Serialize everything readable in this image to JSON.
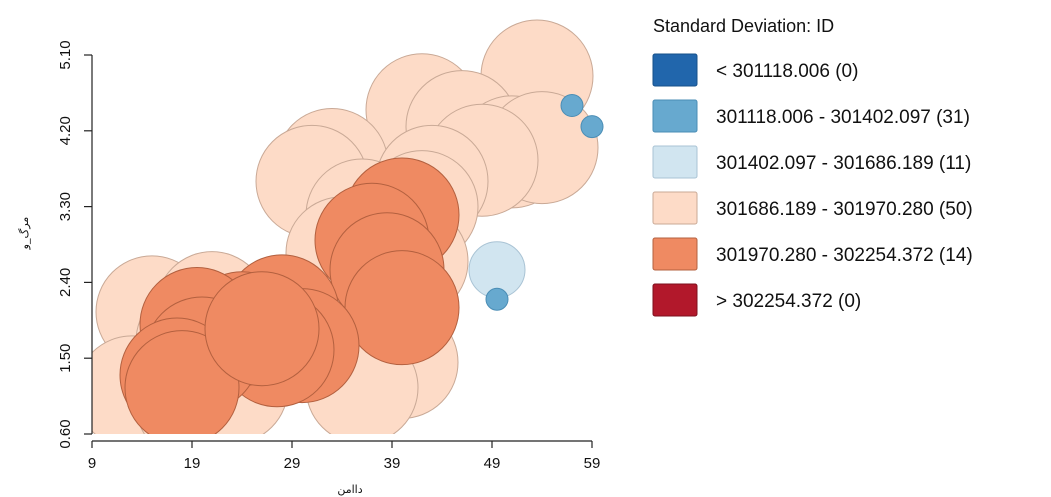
{
  "chart_data": {
    "type": "scatter",
    "subtype": "proportional-symbol map of graduated-color circles",
    "xlabel": "داامن",
    "ylabel": "مرگ_و",
    "xticks": [
      9,
      19,
      29,
      39,
      49,
      59
    ],
    "yticks": [
      "0.60",
      "1.50",
      "2.40",
      "3.30",
      "4.20",
      "5.10"
    ],
    "xlim": [
      9,
      62
    ],
    "ylim": [
      0.6,
      5.3
    ],
    "grid": false,
    "legend_position": "right",
    "legend": {
      "title": "Standard Deviation: ID",
      "classes": [
        {
          "label": "< 301118.006 (0)",
          "color": "#2166ac",
          "stroke": "#16508a"
        },
        {
          "label": "301118.006 - 301402.097 (31)",
          "color": "#67a9cf",
          "stroke": "#4a8db5"
        },
        {
          "label": "301402.097 - 301686.189 (11)",
          "color": "#d1e5f0",
          "stroke": "#a9c3d4"
        },
        {
          "label": "301686.189 - 301970.280 (50)",
          "color": "#fddbc7",
          "stroke": "#c9a996"
        },
        {
          "label": "301970.280 - 302254.372 (14)",
          "color": "#ef8a62",
          "stroke": "#b3603f"
        },
        {
          "label": "> 302254.372 (0)",
          "color": "#b2182b",
          "stroke": "#7d0f1d"
        }
      ]
    },
    "points": [
      {
        "x": 53.5,
        "y": 4.85,
        "cls": 3
      },
      {
        "x": 42,
        "y": 4.45,
        "cls": 3
      },
      {
        "x": 46,
        "y": 4.25,
        "cls": 3
      },
      {
        "x": 51,
        "y": 3.95,
        "cls": 3
      },
      {
        "x": 54,
        "y": 4.0,
        "cls": 3
      },
      {
        "x": 48,
        "y": 3.85,
        "cls": 3
      },
      {
        "x": 33,
        "y": 3.8,
        "cls": 3
      },
      {
        "x": 31,
        "y": 3.6,
        "cls": 3
      },
      {
        "x": 43,
        "y": 3.6,
        "cls": 3
      },
      {
        "x": 42,
        "y": 3.3,
        "cls": 3
      },
      {
        "x": 36,
        "y": 3.2,
        "cls": 3
      },
      {
        "x": 34,
        "y": 2.75,
        "cls": 3
      },
      {
        "x": 38,
        "y": 2.6,
        "cls": 3
      },
      {
        "x": 41,
        "y": 2.65,
        "cls": 3
      },
      {
        "x": 15,
        "y": 2.05,
        "cls": 3
      },
      {
        "x": 21,
        "y": 2.1,
        "cls": 3
      },
      {
        "x": 19,
        "y": 1.7,
        "cls": 3
      },
      {
        "x": 13,
        "y": 1.1,
        "cls": 3
      },
      {
        "x": 19,
        "y": 0.95,
        "cls": 3
      },
      {
        "x": 23,
        "y": 1.15,
        "cls": 3
      },
      {
        "x": 37,
        "y": 1.9,
        "cls": 3
      },
      {
        "x": 40,
        "y": 1.45,
        "cls": 3
      },
      {
        "x": 36,
        "y": 1.15,
        "cls": 3
      },
      {
        "x": 57,
        "y": 4.5,
        "cls": 1
      },
      {
        "x": 59,
        "y": 4.25,
        "cls": 1
      },
      {
        "x": 49.5,
        "y": 2.2,
        "cls": 1
      },
      {
        "x": 49.5,
        "y": 2.55,
        "cls": 2
      },
      {
        "x": 40,
        "y": 3.2,
        "cls": 4
      },
      {
        "x": 37,
        "y": 2.9,
        "cls": 4
      },
      {
        "x": 38.5,
        "y": 2.55,
        "cls": 4
      },
      {
        "x": 40,
        "y": 2.1,
        "cls": 4
      },
      {
        "x": 28,
        "y": 2.05,
        "cls": 4
      },
      {
        "x": 30,
        "y": 1.65,
        "cls": 4
      },
      {
        "x": 27.5,
        "y": 1.6,
        "cls": 4
      },
      {
        "x": 24,
        "y": 1.85,
        "cls": 4
      },
      {
        "x": 19.5,
        "y": 1.9,
        "cls": 4
      },
      {
        "x": 20,
        "y": 1.55,
        "cls": 4
      },
      {
        "x": 17.5,
        "y": 1.3,
        "cls": 4
      },
      {
        "x": 18,
        "y": 1.15,
        "cls": 4
      },
      {
        "x": 26,
        "y": 1.85,
        "cls": 4
      }
    ]
  }
}
